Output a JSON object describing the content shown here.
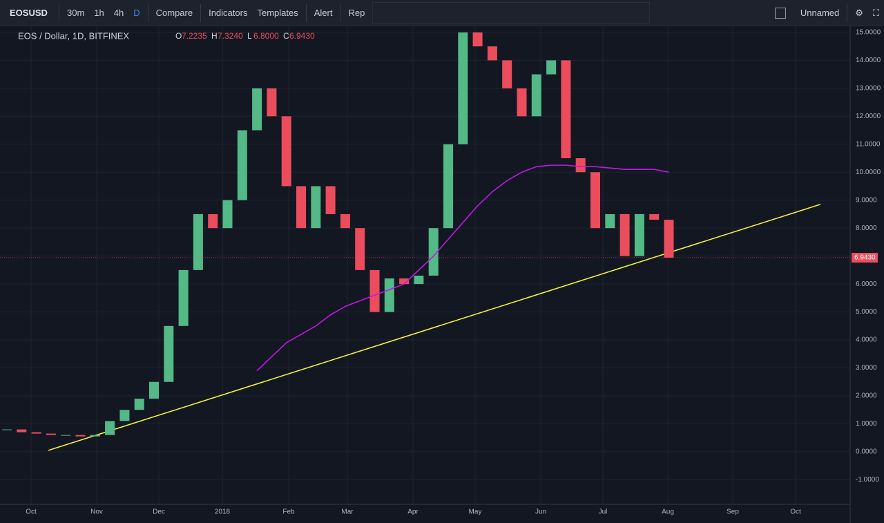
{
  "toolbar": {
    "symbol": "EOSUSD",
    "intervals": [
      "30m",
      "1h",
      "4h",
      "D"
    ],
    "buttons": [
      "Compare",
      "Indicators",
      "Templates",
      "Alert",
      "Rep"
    ],
    "layout_name": "Unnamed"
  },
  "chart_data": {
    "type": "candlestick",
    "title": "EOS / Dollar, 1D, BITFINEX",
    "ohlc": [
      {
        "name": "O",
        "value": 7.2235
      },
      {
        "name": "H",
        "value": {
          "value": 7.324,
          "label": "7.3240"
        }
      },
      {
        "name": "L",
        "value": {
          "value": 6.8,
          "label": "6.8000"
        }
      },
      {
        "name": "C",
        "value": {
          "value": 6.943,
          "label": "6.9430"
        }
      }
    ],
    "categories": [
      "Oct",
      "Nov",
      "Dec",
      "2018",
      "Feb",
      "Mar",
      "Apr",
      "May",
      "Jun",
      "Jul",
      "Aug",
      "Sep",
      "Oct"
    ],
    "closes": [
      0.8,
      0.7,
      0.65,
      0.6,
      0.6,
      0.55,
      0.6,
      1.1,
      1.5,
      1.9,
      2.5,
      4.5,
      6.5,
      8.5,
      8.0,
      9.0,
      11.5,
      13.0,
      12.0,
      9.5,
      8.0,
      9.5,
      8.5,
      8.0,
      6.5,
      5.0,
      6.2,
      6.0,
      6.3,
      8.0,
      11.0,
      15.0,
      14.5,
      14.0,
      13.0,
      12.0,
      13.5,
      14.0,
      10.5,
      10.0,
      8.0,
      8.5,
      7.0,
      8.5,
      8.3,
      6.943
    ],
    "up_color": "#53b987",
    "down_color": "#eb4d5c",
    "moving_average": {
      "color": "#c218e6",
      "values": [
        null,
        null,
        null,
        null,
        null,
        null,
        null,
        null,
        null,
        null,
        null,
        null,
        null,
        null,
        null,
        null,
        null,
        2.9,
        3.4,
        3.9,
        4.2,
        4.5,
        4.9,
        5.2,
        5.4,
        5.6,
        5.8,
        6.0,
        6.5,
        7.0,
        7.6,
        8.2,
        8.8,
        9.3,
        9.7,
        10.0,
        10.2,
        10.25,
        10.25,
        10.2,
        10.2,
        10.15,
        10.1,
        10.1,
        10.1,
        10.0
      ]
    },
    "trendline": {
      "color": "#f2f23a",
      "start": 0.05,
      "end": 8.85
    },
    "last_price": {
      "value": 6.943,
      "label": "6.9430"
    },
    "ylim": [
      -1.88,
      15.22
    ],
    "yticks": [
      {
        "value": 15,
        "label": "15.0000"
      },
      {
        "value": 14,
        "label": "14.0000"
      },
      {
        "value": 13,
        "label": "13.0000"
      },
      {
        "value": 12,
        "label": "12.0000"
      },
      {
        "value": 11,
        "label": "11.0000"
      },
      {
        "value": 10,
        "label": "10.0000"
      },
      {
        "value": 9,
        "label": "9.0000"
      },
      {
        "value": 8,
        "label": "8.0000"
      },
      {
        "value": 7,
        "label": "7.0000"
      },
      {
        "value": 6,
        "label": "6.0000"
      },
      {
        "value": 5,
        "label": "5.0000"
      },
      {
        "value": 4,
        "label": "4.0000"
      },
      {
        "value": 3,
        "label": "3.0000"
      },
      {
        "value": 2,
        "label": "2.0000"
      },
      {
        "value": 1,
        "label": "1.0000"
      },
      {
        "value": 0,
        "label": "0.0000"
      },
      {
        "value": -1,
        "label": "-1.0000"
      }
    ],
    "grid": true
  }
}
